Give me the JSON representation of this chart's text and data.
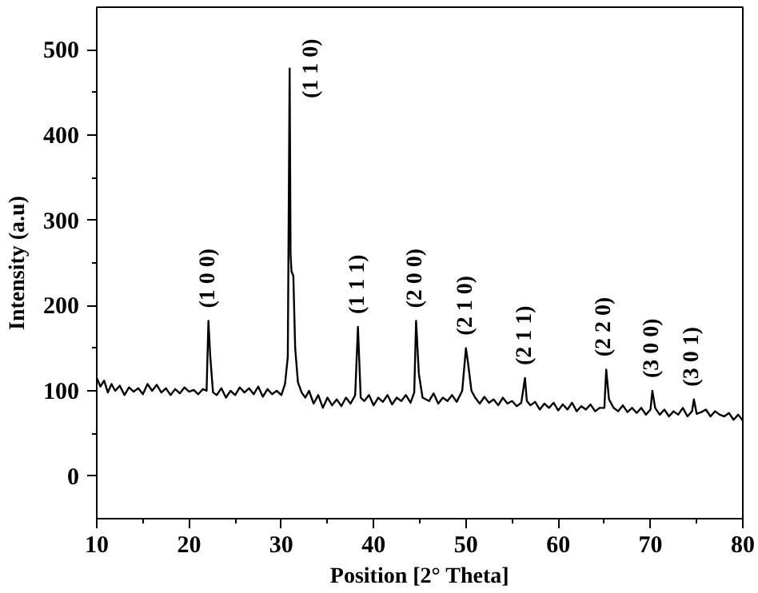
{
  "chart_data": {
    "type": "line",
    "xlabel": "Position [2° Theta]",
    "ylabel": "Intensity (a.u)",
    "xlim": [
      10,
      80
    ],
    "ylim": [
      -50,
      550
    ],
    "xticks": [
      10,
      20,
      30,
      40,
      50,
      60,
      70,
      80
    ],
    "yticks": [
      0,
      100,
      200,
      300,
      400,
      500
    ],
    "grid": false,
    "marker": "none",
    "line_style": "solid",
    "series": [
      {
        "color": "#000000",
        "x": [
          10,
          10.4,
          10.8,
          11.2,
          11.6,
          12,
          12.5,
          13,
          13.5,
          14,
          14.5,
          15,
          15.5,
          16,
          16.5,
          17,
          17.5,
          18,
          18.5,
          19,
          19.5,
          20,
          20.5,
          21,
          21.5,
          21.9,
          22.1,
          22.3,
          22.6,
          23,
          23.5,
          24,
          24.5,
          25,
          25.5,
          26,
          26.5,
          27,
          27.5,
          28,
          28.5,
          29,
          29.5,
          30,
          30.4,
          30.7,
          30.9,
          31,
          31.1,
          31.3,
          31.5,
          31.8,
          32.2,
          32.6,
          33,
          33.5,
          34,
          34.5,
          35,
          35.5,
          36,
          36.5,
          37,
          37.5,
          38,
          38.3,
          38.6,
          39,
          39.5,
          40,
          40.5,
          41,
          41.5,
          42,
          42.5,
          43,
          43.5,
          44,
          44.4,
          44.6,
          44.9,
          45.3,
          46,
          46.5,
          47,
          47.5,
          48,
          48.5,
          49,
          49.6,
          50,
          50.2,
          50.6,
          51,
          51.5,
          52,
          52.5,
          53,
          53.5,
          54,
          54.5,
          55,
          55.5,
          56,
          56.4,
          56.6,
          57,
          57.5,
          58,
          58.5,
          59,
          59.5,
          60,
          60.5,
          61,
          61.5,
          62,
          62.5,
          63,
          63.5,
          64,
          64.5,
          65,
          65.2,
          65.5,
          66,
          66.5,
          67,
          67.5,
          68,
          68.5,
          69,
          69.5,
          70,
          70.2,
          70.5,
          71,
          71.5,
          72,
          72.5,
          73,
          73.5,
          74,
          74.5,
          74.7,
          75,
          75.5,
          76,
          76.5,
          77,
          77.5,
          78,
          78.5,
          79,
          79.5,
          80
        ],
        "values": [
          115,
          105,
          112,
          98,
          108,
          100,
          106,
          95,
          104,
          99,
          103,
          96,
          108,
          100,
          107,
          98,
          103,
          95,
          102,
          97,
          104,
          99,
          101,
          96,
          102,
          100,
          182,
          140,
          98,
          95,
          103,
          92,
          100,
          95,
          104,
          98,
          103,
          96,
          105,
          93,
          102,
          96,
          100,
          95,
          108,
          140,
          478,
          260,
          240,
          235,
          150,
          110,
          98,
          92,
          100,
          85,
          95,
          80,
          92,
          83,
          90,
          82,
          92,
          85,
          95,
          175,
          92,
          88,
          95,
          83,
          92,
          87,
          95,
          84,
          92,
          88,
          95,
          86,
          98,
          182,
          120,
          92,
          88,
          97,
          85,
          92,
          88,
          95,
          87,
          100,
          150,
          135,
          100,
          92,
          85,
          93,
          86,
          90,
          83,
          92,
          85,
          88,
          82,
          86,
          115,
          88,
          83,
          87,
          78,
          85,
          80,
          86,
          77,
          84,
          78,
          86,
          76,
          82,
          78,
          84,
          76,
          80,
          80,
          125,
          90,
          80,
          76,
          83,
          75,
          80,
          74,
          80,
          72,
          78,
          100,
          80,
          72,
          78,
          70,
          76,
          72,
          80,
          70,
          76,
          90,
          73,
          75,
          78,
          70,
          76,
          72,
          70,
          74,
          66,
          72,
          65
        ]
      }
    ],
    "annotations": [
      {
        "text": "(1 0 0)",
        "x": 22.1,
        "y": 182
      },
      {
        "text": "(1 1 0)",
        "x": 30.9,
        "y": 478
      },
      {
        "text": "(1 1 1)",
        "x": 38.3,
        "y": 175
      },
      {
        "text": "(2 0 0)",
        "x": 44.6,
        "y": 182
      },
      {
        "text": "(2 1 0)",
        "x": 50,
        "y": 150
      },
      {
        "text": "(2 1 1)",
        "x": 56.4,
        "y": 115
      },
      {
        "text": "(2 2 0)",
        "x": 65,
        "y": 125
      },
      {
        "text": "(3 0 0)",
        "x": 70.2,
        "y": 100
      },
      {
        "text": "(3 0 1)",
        "x": 74.5,
        "y": 90
      }
    ]
  }
}
